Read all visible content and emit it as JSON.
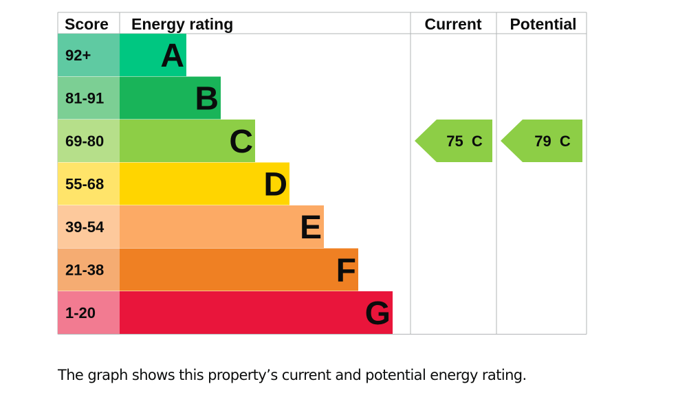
{
  "chart_data": {
    "type": "bar",
    "headers": {
      "score": "Score",
      "rating": "Energy rating",
      "current": "Current",
      "potential": "Potential"
    },
    "bands": [
      {
        "score": "92+",
        "letter": "A",
        "min": 92,
        "max": 100,
        "band_color": "#00c781",
        "score_color": "#5fcaa2"
      },
      {
        "score": "81-91",
        "letter": "B",
        "min": 81,
        "max": 91,
        "band_color": "#19b459",
        "score_color": "#7ccf94"
      },
      {
        "score": "69-80",
        "letter": "C",
        "min": 69,
        "max": 80,
        "band_color": "#8dce46",
        "score_color": "#b6df8a"
      },
      {
        "score": "55-68",
        "letter": "D",
        "min": 55,
        "max": 68,
        "band_color": "#ffd500",
        "score_color": "#ffe46a"
      },
      {
        "score": "39-54",
        "letter": "E",
        "min": 39,
        "max": 54,
        "band_color": "#fcaa65",
        "score_color": "#fdc99c"
      },
      {
        "score": "21-38",
        "letter": "F",
        "min": 21,
        "max": 38,
        "band_color": "#ef8023",
        "score_color": "#f5ac72"
      },
      {
        "score": "1-20",
        "letter": "G",
        "min": 1,
        "max": 20,
        "band_color": "#e9153b",
        "score_color": "#f27b91"
      }
    ],
    "current": {
      "value": 75,
      "letter": "C",
      "label": "75  C",
      "color": "#8dce46"
    },
    "potential": {
      "value": 79,
      "letter": "C",
      "label": "79  C",
      "color": "#8dce46"
    }
  },
  "caption": "The graph shows this property’s current and potential energy rating."
}
